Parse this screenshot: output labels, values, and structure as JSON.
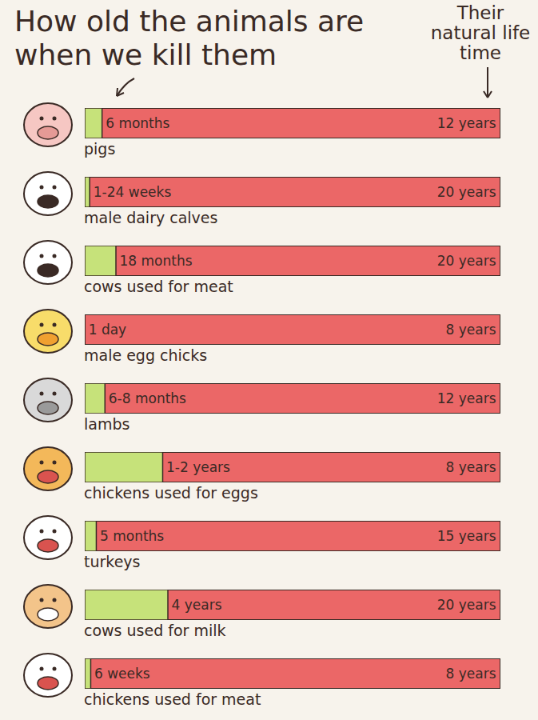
{
  "chart_data": {
    "type": "bar",
    "orientation": "horizontal",
    "data_labels": true,
    "tick_labels": false,
    "categories": [
      "pigs",
      "male dairy calves",
      "cows used for meat",
      "male egg chicks",
      "lambs",
      "chickens used for eggs",
      "turkeys",
      "cows used for milk",
      "chickens used for meat"
    ],
    "series": [
      {
        "name": "How old the animals are when we kill them",
        "color": "#c6e27a",
        "values": [
          0.5,
          0.24,
          1.5,
          0.0027,
          0.583,
          1.5,
          0.417,
          4,
          0.115
        ],
        "value_labels": [
          "6 months",
          "1-24 weeks",
          "18 months",
          "1 day",
          "6-8 months",
          "1-2 years",
          "5 months",
          "4 years",
          "6 weeks"
        ]
      },
      {
        "name": "Their natural life time",
        "color": "#eb6767",
        "values": [
          12,
          20,
          20,
          8,
          12,
          8,
          15,
          20,
          8
        ],
        "value_labels": [
          "12 years",
          "20 years",
          "20 years",
          "8 years",
          "12 years",
          "8 years",
          "15 years",
          "20 years",
          "8 years"
        ]
      }
    ]
  }
}
